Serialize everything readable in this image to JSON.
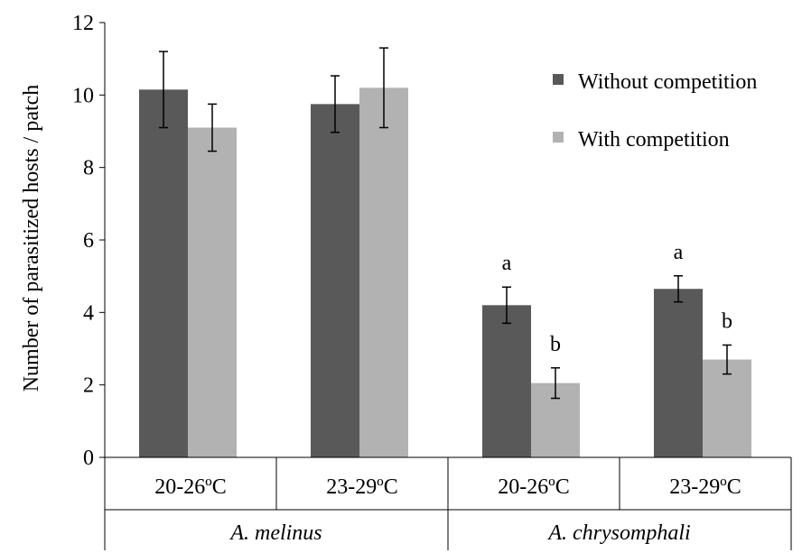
{
  "chart_data": {
    "type": "bar",
    "title": "",
    "xlabel": "",
    "ylabel": "Number of parasitized hosts / patch",
    "ylim": [
      0,
      12
    ],
    "yticks": [
      0,
      2,
      4,
      6,
      8,
      10,
      12
    ],
    "grid": false,
    "legend_position": "top-right",
    "groups": [
      {
        "label": "A. melinus",
        "categories": [
          "20-26ºC",
          "23-29ºC"
        ]
      },
      {
        "label": "A. chrysomphali",
        "categories": [
          "20-26ºC",
          "23-29ºC"
        ]
      }
    ],
    "categories": [
      "20-26ºC",
      "23-29ºC",
      "20-26ºC",
      "23-29ºC"
    ],
    "series": [
      {
        "name": "Without competition",
        "color": "#595959",
        "values": [
          10.15,
          9.75,
          4.2,
          4.65
        ],
        "errors": [
          1.05,
          0.78,
          0.5,
          0.36
        ],
        "annotations": [
          "",
          "",
          "a",
          "a"
        ]
      },
      {
        "name": "With competition",
        "color": "#b2b2b2",
        "values": [
          9.1,
          10.2,
          2.05,
          2.7
        ],
        "errors": [
          0.65,
          1.1,
          0.42,
          0.4
        ],
        "annotations": [
          "",
          "",
          "b",
          "b"
        ]
      }
    ]
  }
}
